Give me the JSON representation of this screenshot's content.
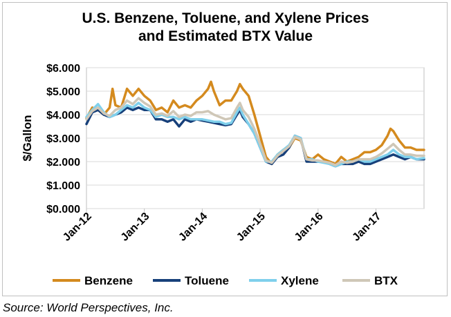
{
  "title_line1": "U.S. Benzene, Toluene, and Xylene Prices",
  "title_line2": "and Estimated BTX Value",
  "source": "Source: World Perspectives, Inc.",
  "chart_data": {
    "type": "line",
    "ylabel": "$/Gallon",
    "xlabel": "",
    "ylim": [
      0,
      6
    ],
    "yticks": [
      "$0.000",
      "$1.000",
      "$2.000",
      "$3.000",
      "$4.000",
      "$5.000",
      "$6.000"
    ],
    "xlim": [
      2012.0,
      2017.83
    ],
    "xtick_labels": [
      "Jan-12",
      "Jan-13",
      "Jan-14",
      "Jan-15",
      "Jan-16",
      "Jan-17"
    ],
    "grid": true,
    "legend_position": "bottom",
    "series": [
      {
        "name": "Benzene",
        "color": "#D48A1E",
        "x": [
          2012.0,
          2012.1,
          2012.2,
          2012.3,
          2012.4,
          2012.45,
          2012.5,
          2012.6,
          2012.7,
          2012.8,
          2012.9,
          2013.0,
          2013.1,
          2013.2,
          2013.3,
          2013.4,
          2013.5,
          2013.6,
          2013.7,
          2013.8,
          2013.9,
          2014.0,
          2014.1,
          2014.15,
          2014.2,
          2014.3,
          2014.4,
          2014.5,
          2014.6,
          2014.65,
          2014.7,
          2014.8,
          2014.9,
          2015.0,
          2015.1,
          2015.2,
          2015.3,
          2015.4,
          2015.5,
          2015.6,
          2015.7,
          2015.8,
          2015.9,
          2016.0,
          2016.1,
          2016.2,
          2016.3,
          2016.4,
          2016.5,
          2016.6,
          2016.7,
          2016.8,
          2016.9,
          2017.0,
          2017.1,
          2017.2,
          2017.25,
          2017.3,
          2017.4,
          2017.5,
          2017.6,
          2017.7,
          2017.83
        ],
        "values": [
          3.85,
          4.3,
          4.2,
          4.0,
          4.3,
          5.1,
          4.4,
          4.3,
          5.1,
          4.8,
          5.1,
          4.8,
          4.6,
          4.2,
          4.3,
          4.1,
          4.6,
          4.3,
          4.4,
          4.3,
          4.6,
          4.8,
          5.1,
          5.4,
          5.0,
          4.4,
          4.6,
          4.6,
          5.0,
          5.3,
          5.1,
          4.8,
          4.0,
          3.1,
          2.2,
          1.9,
          2.3,
          2.5,
          2.6,
          3.0,
          2.9,
          2.2,
          2.1,
          2.3,
          2.1,
          2.0,
          1.9,
          2.2,
          2.0,
          2.1,
          2.2,
          2.4,
          2.4,
          2.5,
          2.7,
          3.1,
          3.4,
          3.3,
          2.9,
          2.6,
          2.6,
          2.5,
          2.5
        ]
      },
      {
        "name": "Toluene",
        "color": "#17407A",
        "x": [
          2012.0,
          2012.1,
          2012.2,
          2012.3,
          2012.4,
          2012.5,
          2012.6,
          2012.7,
          2012.8,
          2012.9,
          2013.0,
          2013.1,
          2013.2,
          2013.3,
          2013.4,
          2013.5,
          2013.6,
          2013.7,
          2013.8,
          2013.9,
          2014.0,
          2014.1,
          2014.2,
          2014.3,
          2014.4,
          2014.5,
          2014.6,
          2014.65,
          2014.7,
          2014.8,
          2014.9,
          2015.0,
          2015.1,
          2015.2,
          2015.3,
          2015.4,
          2015.5,
          2015.6,
          2015.7,
          2015.8,
          2015.9,
          2016.0,
          2016.1,
          2016.2,
          2016.3,
          2016.4,
          2016.5,
          2016.6,
          2016.7,
          2016.8,
          2016.9,
          2017.0,
          2017.1,
          2017.2,
          2017.3,
          2017.4,
          2017.5,
          2017.6,
          2017.7,
          2017.83
        ],
        "values": [
          3.6,
          4.1,
          4.2,
          4.0,
          3.9,
          4.0,
          4.1,
          4.3,
          4.2,
          4.3,
          4.2,
          4.2,
          3.8,
          3.8,
          3.7,
          3.8,
          3.5,
          3.8,
          3.7,
          3.8,
          3.75,
          3.7,
          3.65,
          3.6,
          3.55,
          3.6,
          4.0,
          4.2,
          3.9,
          3.6,
          3.2,
          2.6,
          2.0,
          1.9,
          2.2,
          2.3,
          2.6,
          3.1,
          3.0,
          2.0,
          2.0,
          2.0,
          2.0,
          1.9,
          1.8,
          1.9,
          1.9,
          1.9,
          2.0,
          1.9,
          1.9,
          2.0,
          2.1,
          2.2,
          2.3,
          2.2,
          2.1,
          2.2,
          2.1,
          2.1
        ]
      },
      {
        "name": "Xylene",
        "color": "#7FD0EC",
        "x": [
          2012.0,
          2012.1,
          2012.2,
          2012.3,
          2012.4,
          2012.5,
          2012.6,
          2012.7,
          2012.8,
          2012.9,
          2013.0,
          2013.1,
          2013.2,
          2013.3,
          2013.4,
          2013.5,
          2013.6,
          2013.7,
          2013.8,
          2013.9,
          2014.0,
          2014.1,
          2014.2,
          2014.3,
          2014.4,
          2014.5,
          2014.6,
          2014.65,
          2014.7,
          2014.8,
          2014.9,
          2015.0,
          2015.1,
          2015.2,
          2015.3,
          2015.4,
          2015.5,
          2015.6,
          2015.7,
          2015.8,
          2015.9,
          2016.0,
          2016.1,
          2016.2,
          2016.3,
          2016.4,
          2016.5,
          2016.6,
          2016.7,
          2016.8,
          2016.9,
          2017.0,
          2017.1,
          2017.2,
          2017.3,
          2017.4,
          2017.5,
          2017.6,
          2017.7,
          2017.83
        ],
        "values": [
          3.9,
          4.2,
          4.45,
          4.1,
          3.9,
          4.0,
          4.2,
          4.4,
          4.3,
          4.5,
          4.3,
          4.2,
          3.9,
          4.0,
          3.9,
          3.9,
          3.8,
          3.9,
          3.8,
          3.8,
          3.8,
          3.75,
          3.7,
          3.7,
          3.6,
          3.65,
          4.1,
          4.3,
          4.0,
          3.6,
          3.2,
          2.6,
          2.0,
          2.0,
          2.3,
          2.5,
          2.7,
          3.1,
          3.0,
          2.1,
          2.1,
          2.0,
          1.95,
          1.9,
          1.8,
          1.9,
          2.0,
          2.0,
          2.1,
          2.0,
          2.0,
          2.1,
          2.2,
          2.3,
          2.5,
          2.3,
          2.2,
          2.2,
          2.1,
          2.15
        ]
      },
      {
        "name": "BTX",
        "color": "#CFC7B7",
        "x": [
          2012.0,
          2012.1,
          2012.2,
          2012.3,
          2012.4,
          2012.5,
          2012.6,
          2012.7,
          2012.8,
          2012.9,
          2013.0,
          2013.1,
          2013.2,
          2013.3,
          2013.4,
          2013.5,
          2013.6,
          2013.7,
          2013.8,
          2013.9,
          2014.0,
          2014.1,
          2014.2,
          2014.3,
          2014.4,
          2014.5,
          2014.6,
          2014.65,
          2014.7,
          2014.8,
          2014.9,
          2015.0,
          2015.1,
          2015.2,
          2015.3,
          2015.4,
          2015.5,
          2015.6,
          2015.7,
          2015.8,
          2015.9,
          2016.0,
          2016.1,
          2016.2,
          2016.3,
          2016.4,
          2016.5,
          2016.6,
          2016.7,
          2016.8,
          2016.9,
          2017.0,
          2017.1,
          2017.2,
          2017.3,
          2017.4,
          2017.5,
          2017.6,
          2017.7,
          2017.83
        ],
        "values": [
          3.8,
          4.15,
          4.3,
          4.05,
          3.95,
          4.2,
          4.3,
          4.6,
          4.45,
          4.7,
          4.5,
          4.35,
          4.0,
          4.05,
          3.95,
          4.15,
          3.9,
          4.0,
          3.95,
          4.1,
          4.1,
          4.15,
          4.0,
          3.9,
          3.8,
          3.85,
          4.3,
          4.5,
          4.2,
          3.9,
          3.4,
          2.75,
          2.05,
          1.95,
          2.25,
          2.45,
          2.65,
          3.05,
          2.95,
          2.1,
          2.05,
          2.05,
          2.0,
          1.95,
          1.85,
          2.0,
          1.95,
          2.0,
          2.1,
          2.1,
          2.1,
          2.2,
          2.35,
          2.55,
          2.75,
          2.5,
          2.3,
          2.3,
          2.25,
          2.25
        ]
      }
    ]
  }
}
